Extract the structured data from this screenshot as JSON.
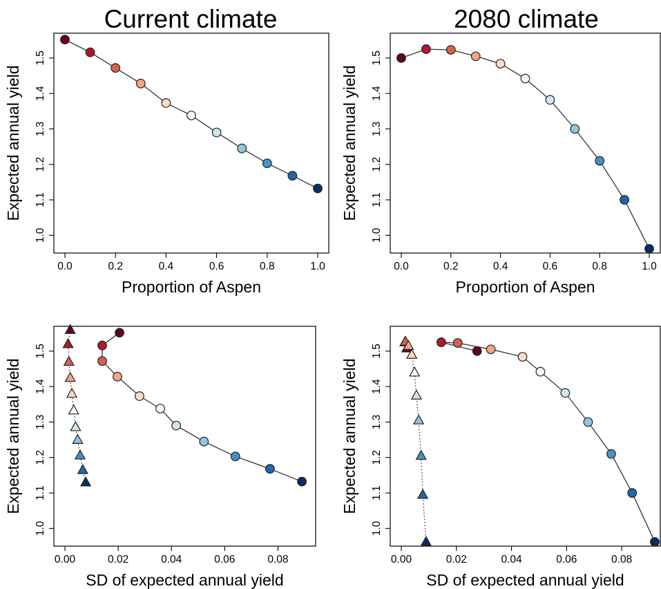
{
  "figure": {
    "titles": [
      "Current climate",
      "2080 climate"
    ]
  },
  "palette": [
    "#67001f",
    "#b2182b",
    "#d6604d",
    "#f4a582",
    "#fddbc7",
    "#f7f7f7",
    "#d1e5f0",
    "#92c5de",
    "#4393c3",
    "#2166ac",
    "#053061"
  ],
  "chart_data": [
    {
      "type": "line",
      "marker": "circle",
      "title": "Current climate",
      "xlabel": "Proportion of Aspen",
      "ylabel": "Expected annual yield",
      "xlim": [
        0,
        1
      ],
      "ylim": [
        0.95,
        1.57
      ],
      "xticks": [
        "0.0",
        "0.2",
        "0.4",
        "0.6",
        "0.8",
        "1.0"
      ],
      "yticks": [
        "1.0",
        "1.1",
        "1.2",
        "1.3",
        "1.4",
        "1.5"
      ],
      "series": [
        {
          "x": [
            0.0,
            0.1,
            0.2,
            0.3,
            0.4,
            0.5,
            0.6,
            0.7,
            0.8,
            0.9,
            1.0
          ],
          "y": [
            1.552,
            1.516,
            1.472,
            1.428,
            1.373,
            1.338,
            1.29,
            1.245,
            1.203,
            1.168,
            1.132
          ]
        }
      ]
    },
    {
      "type": "line",
      "marker": "circle",
      "title": "2080 climate",
      "xlabel": "Proportion of Aspen",
      "ylabel": "Expected annual yield",
      "xlim": [
        0,
        1
      ],
      "ylim": [
        0.95,
        1.57
      ],
      "xticks": [
        "0.0",
        "0.2",
        "0.4",
        "0.6",
        "0.8",
        "1.0"
      ],
      "yticks": [
        "1.0",
        "1.1",
        "1.2",
        "1.3",
        "1.4",
        "1.5"
      ],
      "series": [
        {
          "x": [
            0.0,
            0.1,
            0.2,
            0.3,
            0.4,
            0.5,
            0.6,
            0.7,
            0.8,
            0.9,
            1.0
          ],
          "y": [
            1.5,
            1.525,
            1.523,
            1.505,
            1.484,
            1.442,
            1.382,
            1.3,
            1.21,
            1.1,
            0.962
          ]
        }
      ]
    },
    {
      "type": "scatter",
      "xlabel": "SD of expected annual yield",
      "ylabel": "Expected annual yield",
      "xlim": [
        0,
        0.09
      ],
      "ylim": [
        0.95,
        1.57
      ],
      "xticks": [
        "0.00",
        "0.02",
        "0.04",
        "0.06",
        "0.08"
      ],
      "yticks": [
        "1.0",
        "1.1",
        "1.2",
        "1.3",
        "1.4",
        "1.5"
      ],
      "series": [
        {
          "marker": "circle",
          "line": "solid",
          "x": [
            0.0205,
            0.014,
            0.014,
            0.0197,
            0.028,
            0.0358,
            0.0418,
            0.0522,
            0.064,
            0.077,
            0.089
          ],
          "y": [
            1.552,
            1.516,
            1.472,
            1.428,
            1.373,
            1.338,
            1.29,
            1.245,
            1.203,
            1.168,
            1.132
          ]
        },
        {
          "marker": "triangle",
          "line": "dotted",
          "x": [
            0.002,
            0.0012,
            0.0015,
            0.002,
            0.0026,
            0.0033,
            0.004,
            0.0048,
            0.0057,
            0.0067,
            0.0078
          ],
          "y": [
            1.56,
            1.52,
            1.47,
            1.425,
            1.38,
            1.333,
            1.286,
            1.25,
            1.206,
            1.165,
            1.13
          ]
        }
      ]
    },
    {
      "type": "scatter",
      "xlabel": "SD of expected annual yield",
      "ylabel": "Expected annual yield",
      "xlim": [
        0,
        0.09
      ],
      "ylim": [
        0.95,
        1.57
      ],
      "xticks": [
        "0.00",
        "0.02",
        "0.04",
        "0.06",
        "0.08"
      ],
      "yticks": [
        "1.0",
        "1.1",
        "1.2",
        "1.3",
        "1.4",
        "1.5"
      ],
      "series": [
        {
          "marker": "circle",
          "line": "solid",
          "x": [
            0.0275,
            0.0145,
            0.0205,
            0.0325,
            0.044,
            0.0505,
            0.0595,
            0.0678,
            0.0762,
            0.0838,
            0.092
          ],
          "y": [
            1.5,
            1.525,
            1.523,
            1.505,
            1.484,
            1.442,
            1.382,
            1.3,
            1.21,
            1.1,
            0.962
          ]
        },
        {
          "marker": "triangle",
          "line": "dotted",
          "x": [
            0.002,
            0.0013,
            0.0015,
            0.0026,
            0.0038,
            0.0048,
            0.0055,
            0.0063,
            0.0072,
            0.0078,
            0.009
          ],
          "y": [
            1.508,
            1.525,
            1.527,
            1.515,
            1.49,
            1.44,
            1.375,
            1.305,
            1.205,
            1.095,
            0.962
          ]
        }
      ]
    }
  ]
}
